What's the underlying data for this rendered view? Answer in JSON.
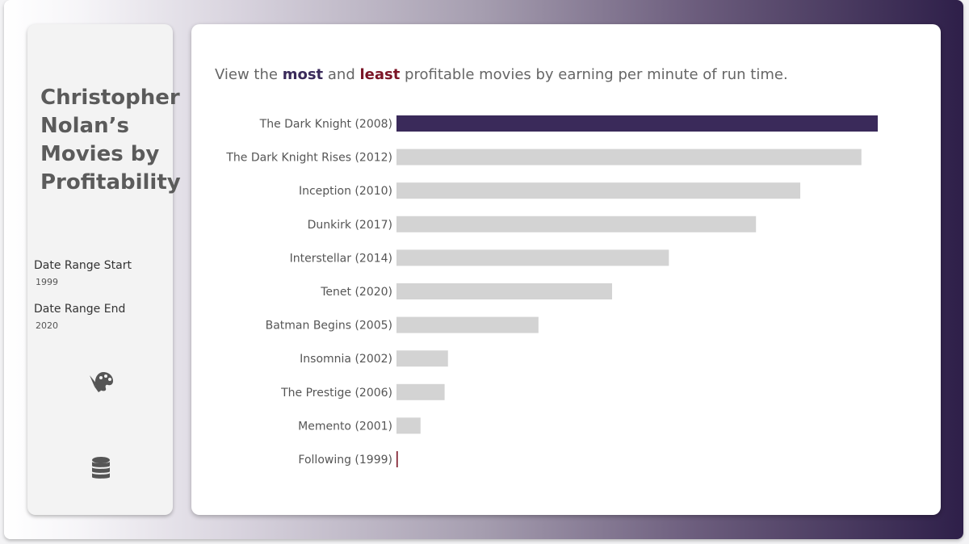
{
  "sidebar": {
    "title": "Christopher\nNolan’s\nMovies by\nProfitability",
    "filters": [
      {
        "label": "Date Range Start",
        "value": "1999"
      },
      {
        "label": "Date Range End",
        "value": "2020"
      }
    ],
    "icons": [
      "palette-icon",
      "database-icon"
    ]
  },
  "headline": {
    "prefix": "View the ",
    "most": "most",
    "middle": " and ",
    "least": "least",
    "suffix": " profitable movies by earning per minute of run time."
  },
  "colors": {
    "highlight": "#3a2a5a",
    "least": "#7b1526",
    "default_bar": "#d3d3d3"
  },
  "chart_data": {
    "type": "bar",
    "orientation": "horizontal",
    "categories": [
      "The Dark Knight (2008)",
      "The Dark Knight Rises (2012)",
      "Inception (2010)",
      "Dunkirk (2017)",
      "Interstellar (2014)",
      "Tenet (2020)",
      "Batman Begins  (2005)",
      "Insomnia (2002)",
      "The Prestige (2006)",
      "Memento (2001)",
      "Following (1999)"
    ],
    "values": [
      100,
      96.6,
      83.9,
      74.7,
      56.6,
      44.8,
      29.5,
      10.7,
      10.0,
      5.0,
      0.1
    ],
    "xlim": [
      0,
      100
    ],
    "highlight_index": 0,
    "least_index": 10,
    "title": "",
    "xlabel": "",
    "ylabel": "",
    "grid": false
  }
}
